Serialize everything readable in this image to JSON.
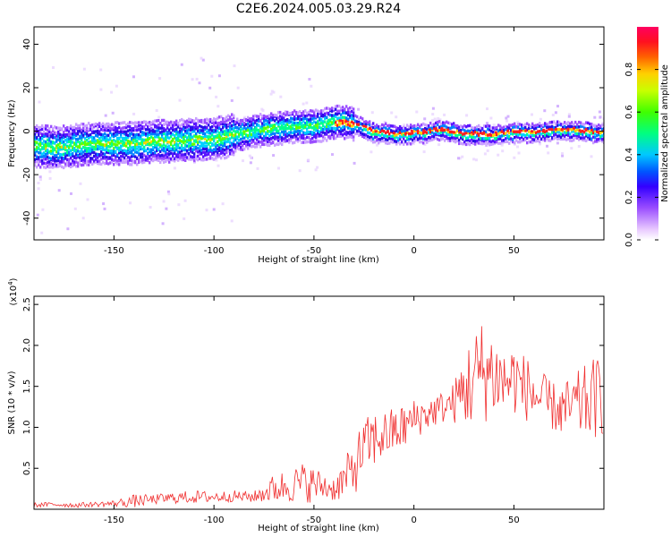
{
  "title": "C2E6.2024.005.03.29.R24",
  "colors": {
    "snr_line": "#f03030",
    "axis": "#000000",
    "background": "#ffffff"
  },
  "chart_data": [
    {
      "id": "spectrogram",
      "type": "heatmap",
      "title": "C2E6.2024.005.03.29.R24",
      "xlabel": "Height of straight line (km)",
      "ylabel": "Frequency (Hz)",
      "xlim": [
        -190,
        95
      ],
      "ylim": [
        -50,
        48
      ],
      "x_ticks": [
        -150,
        -100,
        -50,
        0,
        50
      ],
      "x_tick_labels": [
        "-150",
        "-100",
        "-50",
        "0",
        "50"
      ],
      "y_ticks": [
        -40,
        -20,
        0,
        20,
        40
      ],
      "y_tick_labels": [
        "-40",
        "-20",
        "0",
        "20",
        "40"
      ],
      "ridge_x": [
        -190,
        -180,
        -170,
        -160,
        -150,
        -140,
        -130,
        -120,
        -110,
        -100,
        -90,
        -80,
        -70,
        -60,
        -50,
        -45,
        -40,
        -35,
        -30,
        -25,
        -20,
        -15,
        -10,
        -5,
        0,
        5,
        10,
        15,
        20,
        25,
        30,
        40,
        50,
        60,
        70,
        80,
        90,
        95
      ],
      "ridge_frequency": [
        -6,
        -7,
        -6,
        -5,
        -5,
        -5,
        -4,
        -4,
        -3,
        -3,
        -1,
        1,
        2,
        3,
        3,
        4,
        5,
        5,
        4,
        2,
        0,
        0,
        -1,
        -1,
        0,
        0,
        1,
        1,
        0,
        -1,
        -1,
        -1,
        0,
        0,
        1,
        1,
        0,
        0
      ],
      "colorbar": {
        "label": "Normalized spectral amplitude",
        "range": [
          0.0,
          1.0
        ],
        "ticks": [
          0.0,
          0.2,
          0.4,
          0.6,
          0.8
        ],
        "tick_labels": [
          "0.0",
          "0.2",
          "0.4",
          "0.6",
          "0.8"
        ]
      }
    },
    {
      "id": "snr",
      "type": "line",
      "xlabel": "Height of straight line (km)",
      "ylabel": "SNR (10 * v/v)",
      "y_multiplier": "(x10",
      "y_multiplier_exp": "4",
      "y_multiplier_close": ")",
      "xlim": [
        -190,
        95
      ],
      "ylim": [
        0,
        2.6
      ],
      "x_ticks": [
        -150,
        -100,
        -50,
        0,
        50
      ],
      "x_tick_labels": [
        "-150",
        "-100",
        "-50",
        "0",
        "50"
      ],
      "y_ticks": [
        0.5,
        1.0,
        1.5,
        2.0,
        2.5
      ],
      "y_tick_labels": [
        "0.5",
        "1.0",
        "1.5",
        "2.0",
        "2.5"
      ],
      "series": [
        {
          "name": "SNR",
          "x": [
            -190,
            -180,
            -170,
            -160,
            -150,
            -140,
            -130,
            -120,
            -110,
            -100,
            -90,
            -80,
            -75,
            -70,
            -65,
            -60,
            -55,
            -50,
            -45,
            -40,
            -35,
            -30,
            -25,
            -20,
            -15,
            -10,
            -5,
            0,
            5,
            10,
            15,
            20,
            25,
            30,
            35,
            40,
            45,
            50,
            55,
            60,
            65,
            70,
            75,
            80,
            85,
            90,
            95
          ],
          "values": [
            0.05,
            0.06,
            0.05,
            0.06,
            0.07,
            0.1,
            0.12,
            0.14,
            0.15,
            0.15,
            0.16,
            0.15,
            0.2,
            0.25,
            0.28,
            0.3,
            0.33,
            0.3,
            0.28,
            0.25,
            0.35,
            0.5,
            0.75,
            0.85,
            0.9,
            0.95,
            1.0,
            1.1,
            1.15,
            1.2,
            1.25,
            1.3,
            1.45,
            1.6,
            1.7,
            1.65,
            1.55,
            1.6,
            1.5,
            1.4,
            1.3,
            1.25,
            1.2,
            1.25,
            1.3,
            1.35,
            1.4
          ],
          "noise_amplitude": [
            0.03,
            0.03,
            0.03,
            0.03,
            0.04,
            0.08,
            0.06,
            0.07,
            0.08,
            0.07,
            0.07,
            0.07,
            0.12,
            0.18,
            0.2,
            0.22,
            0.25,
            0.22,
            0.18,
            0.15,
            0.25,
            0.35,
            0.35,
            0.35,
            0.3,
            0.3,
            0.28,
            0.25,
            0.22,
            0.2,
            0.2,
            0.25,
            0.5,
            0.6,
            0.65,
            0.55,
            0.45,
            0.45,
            0.4,
            0.4,
            0.35,
            0.3,
            0.35,
            0.4,
            0.45,
            0.5,
            0.5
          ]
        }
      ]
    }
  ]
}
